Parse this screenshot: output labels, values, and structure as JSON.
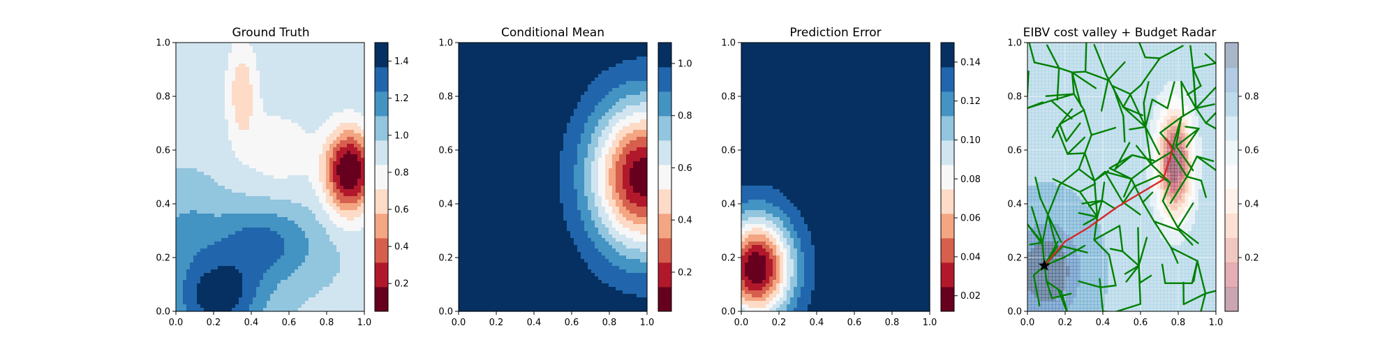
{
  "colors": {
    "rdbu": [
      "#67001f",
      "#b2182b",
      "#d6604d",
      "#f4a582",
      "#fddbc7",
      "#f7f7f7",
      "#d1e5f0",
      "#92c5de",
      "#4393c3",
      "#2166ac",
      "#053061"
    ],
    "path_green": "#008000",
    "path_red": "#d62728",
    "marker": "#000000"
  },
  "chart_data": [
    {
      "type": "heatmap",
      "panel": 1,
      "title": "Ground Truth",
      "xlim": [
        0,
        1
      ],
      "ylim": [
        0,
        1
      ],
      "xticks": [
        "0.0",
        "0.2",
        "0.4",
        "0.6",
        "0.8",
        "1.0"
      ],
      "yticks": [
        "0.0",
        "0.2",
        "0.4",
        "0.6",
        "0.8",
        "1.0"
      ],
      "colorbar": {
        "range": [
          0.05,
          1.5
        ],
        "ticks": [
          "0.2",
          "0.4",
          "0.6",
          "0.8",
          "1.0",
          "1.2",
          "1.4"
        ],
        "tick_values": [
          0.2,
          0.4,
          0.6,
          0.8,
          1.0,
          1.2,
          1.4
        ]
      },
      "field": {
        "base": 0.95,
        "bumps": [
          {
            "x": 0.92,
            "y": 0.52,
            "amp": -0.95,
            "sx": 0.09,
            "sy": 0.11
          },
          {
            "x": 0.35,
            "y": 0.82,
            "amp": -0.32,
            "sx": 0.06,
            "sy": 0.14
          },
          {
            "x": 0.22,
            "y": 0.05,
            "amp": 0.5,
            "sx": 0.16,
            "sy": 0.1
          },
          {
            "x": 0.45,
            "y": 0.25,
            "amp": 0.35,
            "sx": 0.2,
            "sy": 0.1
          },
          {
            "x": 0.55,
            "y": 0.6,
            "amp": -0.18,
            "sx": 0.14,
            "sy": 0.12
          },
          {
            "x": 0.05,
            "y": 0.3,
            "amp": 0.15,
            "sx": 0.12,
            "sy": 0.12
          }
        ]
      }
    },
    {
      "type": "heatmap",
      "panel": 2,
      "title": "Conditional Mean",
      "xlim": [
        0,
        1
      ],
      "ylim": [
        0,
        1
      ],
      "xticks": [
        "0.0",
        "0.2",
        "0.4",
        "0.6",
        "0.8",
        "1.0"
      ],
      "yticks": [
        "0.0",
        "0.2",
        "0.4",
        "0.6",
        "0.8",
        "1.0"
      ],
      "colorbar": {
        "range": [
          0.05,
          1.08
        ],
        "ticks": [
          "0.2",
          "0.4",
          "0.6",
          "0.8",
          "1.0"
        ],
        "tick_values": [
          0.2,
          0.4,
          0.6,
          0.8,
          1.0
        ]
      },
      "field": {
        "base": 1.05,
        "bumps": [
          {
            "x": 0.98,
            "y": 0.5,
            "amp": -0.97,
            "sx": 0.19,
            "sy": 0.19
          }
        ]
      }
    },
    {
      "type": "heatmap",
      "panel": 3,
      "title": "Prediction Error",
      "xlim": [
        0,
        1
      ],
      "ylim": [
        0,
        1
      ],
      "xticks": [
        "0.0",
        "0.2",
        "0.4",
        "0.6",
        "0.8",
        "1.0"
      ],
      "yticks": [
        "0.0",
        "0.2",
        "0.4",
        "0.6",
        "0.8",
        "1.0"
      ],
      "colorbar": {
        "range": [
          0.012,
          0.15
        ],
        "ticks": [
          "0.02",
          "0.04",
          "0.06",
          "0.08",
          "0.10",
          "0.12",
          "0.14"
        ],
        "tick_values": [
          0.02,
          0.04,
          0.06,
          0.08,
          0.1,
          0.12,
          0.14
        ]
      },
      "field": {
        "base": 0.145,
        "bumps": [
          {
            "x": 0.08,
            "y": 0.16,
            "amp": -0.133,
            "sx": 0.13,
            "sy": 0.13
          }
        ]
      }
    },
    {
      "type": "heatmap",
      "panel": 4,
      "title": "EIBV cost valley + Budget Radar",
      "xlim": [
        0,
        1
      ],
      "ylim": [
        0,
        1
      ],
      "xticks": [
        "0.0",
        "0.2",
        "0.4",
        "0.6",
        "0.8",
        "1.0"
      ],
      "yticks": [
        "0.0",
        "0.2",
        "0.4",
        "0.6",
        "0.8",
        "1.0"
      ],
      "grid": true,
      "colorbar": {
        "range": [
          0.0,
          1.0
        ],
        "ticks": [
          "0.2",
          "0.4",
          "0.6",
          "0.8"
        ],
        "tick_values": [
          0.2,
          0.4,
          0.6,
          0.8
        ],
        "alpha": 0.35
      },
      "field": {
        "base": 0.72,
        "bumps": [
          {
            "x": 0.78,
            "y": 0.55,
            "amp": -0.7,
            "sx": 0.07,
            "sy": 0.15
          },
          {
            "x": 0.1,
            "y": 0.15,
            "amp": 0.3,
            "sx": 0.12,
            "sy": 0.12
          }
        ],
        "alpha": 0.5
      },
      "start_point": {
        "x": 0.09,
        "y": 0.17
      },
      "chosen_path": [
        [
          0.09,
          0.17
        ],
        [
          0.2,
          0.26
        ],
        [
          0.32,
          0.31
        ],
        [
          0.48,
          0.39
        ],
        [
          0.6,
          0.44
        ],
        [
          0.72,
          0.49
        ],
        [
          0.77,
          0.6
        ],
        [
          0.74,
          0.64
        ]
      ],
      "tree": {
        "seed": 7,
        "branches": 180
      }
    }
  ]
}
